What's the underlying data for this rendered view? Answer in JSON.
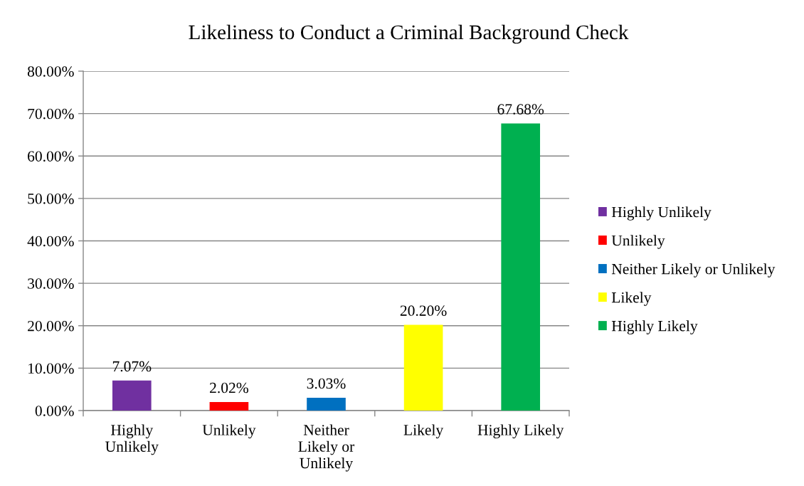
{
  "chart_data": {
    "type": "bar",
    "title": "Likeliness to Conduct a Criminal Background Check",
    "categories": [
      "Highly\nUnlikely",
      "Unlikely",
      "Neither\nLikely or\nUnlikely",
      "Likely",
      "Highly Likely"
    ],
    "series": [
      {
        "name": "Highly Unlikely",
        "color": "#7030a0",
        "values": [
          7.07,
          null,
          null,
          null,
          null
        ],
        "value_labels": [
          "7.07%",
          null,
          null,
          null,
          null
        ]
      },
      {
        "name": "Unlikely",
        "color": "#ff0000",
        "values": [
          null,
          2.02,
          null,
          null,
          null
        ],
        "value_labels": [
          null,
          "2.02%",
          null,
          null,
          null
        ]
      },
      {
        "name": "Neither Likely or Unlikely",
        "color": "#0070c0",
        "values": [
          null,
          null,
          3.03,
          null,
          null
        ],
        "value_labels": [
          null,
          null,
          "3.03%",
          null,
          null
        ]
      },
      {
        "name": "Likely",
        "color": "#ffff00",
        "values": [
          null,
          null,
          null,
          20.2,
          null
        ],
        "value_labels": [
          null,
          null,
          null,
          "20.20%",
          null
        ]
      },
      {
        "name": "Highly Likely",
        "color": "#00b050",
        "values": [
          null,
          null,
          null,
          null,
          67.68
        ],
        "value_labels": [
          null,
          null,
          null,
          null,
          "67.68%"
        ]
      }
    ],
    "ylim": [
      0,
      80
    ],
    "yticks": [
      {
        "value": 0,
        "label": "0.00%"
      },
      {
        "value": 10,
        "label": "10.00%"
      },
      {
        "value": 20,
        "label": "20.00%"
      },
      {
        "value": 30,
        "label": "30.00%"
      },
      {
        "value": 40,
        "label": "40.00%"
      },
      {
        "value": 50,
        "label": "50.00%"
      },
      {
        "value": 60,
        "label": "60.00%"
      },
      {
        "value": 70,
        "label": "70.00%"
      },
      {
        "value": 80,
        "label": "80.00%"
      }
    ],
    "grid": "y",
    "legend": "right"
  }
}
